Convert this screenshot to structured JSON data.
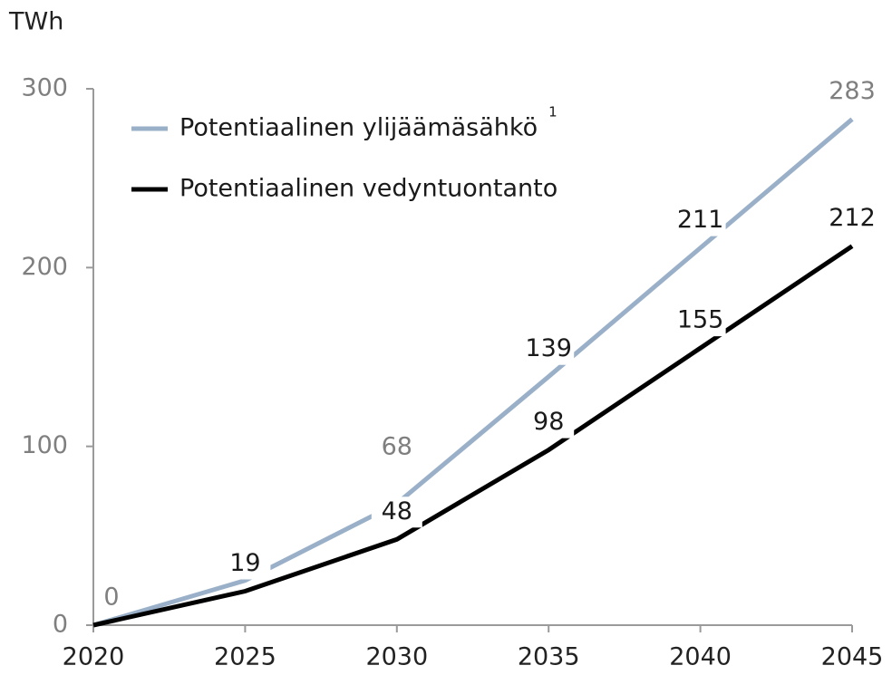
{
  "chart_data": {
    "type": "line",
    "y_label": "TWh",
    "x": [
      2020,
      2025,
      2030,
      2035,
      2040,
      2045
    ],
    "xlim": [
      2020,
      2045
    ],
    "xticks": [
      2020,
      2025,
      2030,
      2035,
      2040,
      2045
    ],
    "ylim": [
      0,
      300
    ],
    "yticks": [
      0,
      100,
      200,
      300
    ],
    "series": [
      {
        "name": "Potentiaalinen ylijäämäsähkö",
        "name_note": "1",
        "color": "#9ab0c8",
        "values": [
          0,
          25,
          68,
          139,
          211,
          283
        ],
        "value_labels": [
          "0",
          null,
          "68",
          "139",
          "211",
          "283"
        ]
      },
      {
        "name": "Potentiaalinen vedyntuontanto",
        "color": "#000000",
        "values": [
          0,
          19,
          48,
          98,
          155,
          212
        ],
        "value_labels": [
          null,
          "19",
          "48",
          "98",
          "155",
          "212"
        ]
      }
    ]
  }
}
